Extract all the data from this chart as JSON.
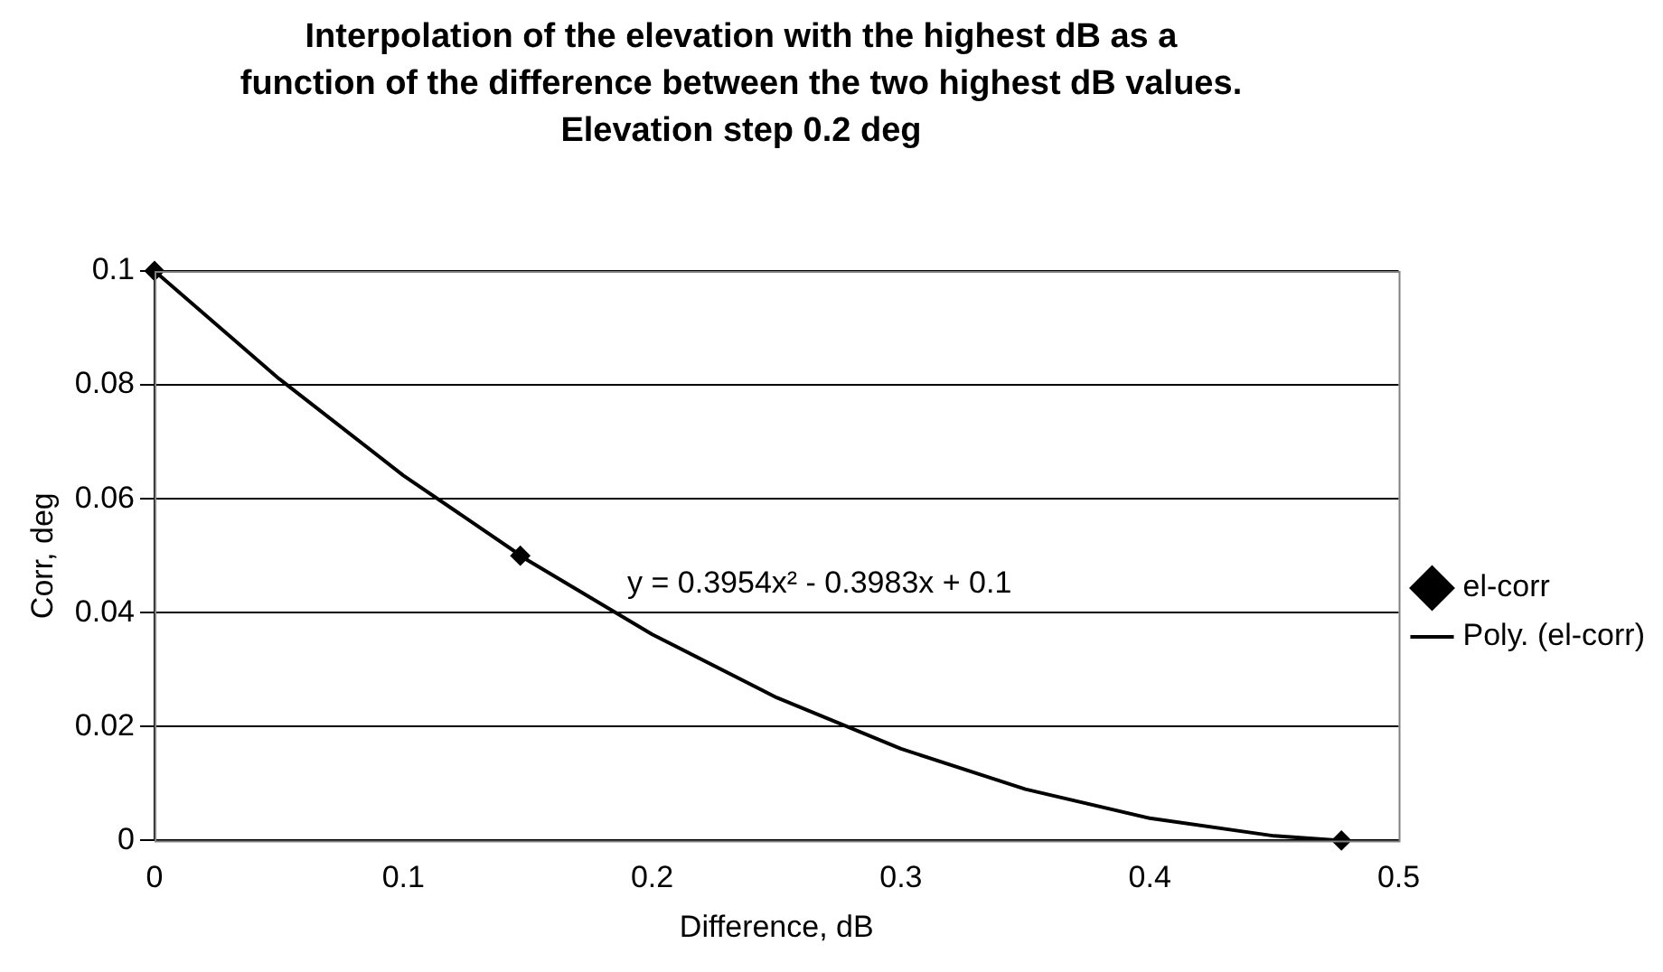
{
  "chart_data": {
    "type": "scatter",
    "title": "Interpolation of the elevation with the highest dB as a function of the difference between the two highest dB values. Elevation step 0.2 deg",
    "xlabel": "Difference, dB",
    "ylabel": "Corr, deg",
    "series": [
      {
        "name": "el-corr",
        "color": "#000000",
        "marker": "diamond",
        "x": [
          0,
          0.147,
          0.477
        ],
        "values": [
          0.1,
          0.05,
          0
        ]
      },
      {
        "name": "Poly. (el-corr)",
        "type": "line",
        "color": "#000000",
        "marker": "none",
        "line_style": "solid",
        "x": [
          0,
          0.05,
          0.1,
          0.15,
          0.2,
          0.25,
          0.3,
          0.35,
          0.4,
          0.45,
          0.477
        ],
        "values": [
          0.1,
          0.0811,
          0.0641,
          0.0492,
          0.0362,
          0.0251,
          0.0161,
          0.009,
          0.0039,
          0.0008,
          0
        ]
      }
    ],
    "annotations": [
      "y = 0.3954x² - 0.3983x + 0.1"
    ],
    "xlim": [
      0,
      0.5
    ],
    "xticks": [
      0,
      0.1,
      0.2,
      0.3,
      0.4,
      0.5
    ],
    "ylim": [
      0,
      0.1
    ],
    "yticks": [
      0,
      0.02,
      0.04,
      0.06,
      0.08,
      0.1
    ],
    "grid": "y",
    "legend": "right"
  }
}
